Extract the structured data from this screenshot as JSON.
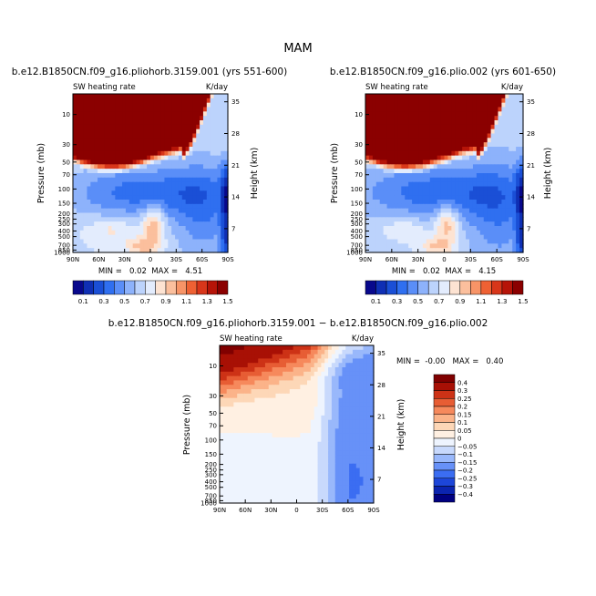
{
  "figure_title": "MAM",
  "chart_data": [
    {
      "type": "heatmap",
      "title": "b.e12.B1850CN.f09_g16.pliohorb.3159.001 (yrs 551-600)",
      "subtitle_left": "SW heating rate",
      "subtitle_right": "K/day",
      "xlabel": "",
      "ylabel": "Pressure (mb)",
      "y2label": "Height (km)",
      "x_tick_labels": [
        "90N",
        "60N",
        "30N",
        "0",
        "30S",
        "60S",
        "90S"
      ],
      "y_tick_labels": [
        "10",
        "30",
        "50",
        "70",
        "100",
        "150",
        "200",
        "250",
        "300",
        "400",
        "500",
        "700",
        "850",
        "1000"
      ],
      "y2_tick_labels": [
        "35",
        "28",
        "21",
        "14",
        "7"
      ],
      "stats_text": "MIN =   0.02  MAX =   4.51",
      "min": 0.02,
      "max": 4.51,
      "colorbar_labels": [
        "0.1",
        "0.3",
        "0.5",
        "0.7",
        "0.9",
        "1.1",
        "1.3",
        "1.5"
      ]
    },
    {
      "type": "heatmap",
      "title": "b.e12.B1850CN.f09_g16.plio.002 (yrs 601-650)",
      "subtitle_left": "SW heating rate",
      "subtitle_right": "K/day",
      "xlabel": "",
      "ylabel": "Pressure (mb)",
      "y2label": "Height (km)",
      "x_tick_labels": [
        "90N",
        "60N",
        "30N",
        "0",
        "30S",
        "60S",
        "90S"
      ],
      "y_tick_labels": [
        "10",
        "30",
        "50",
        "70",
        "100",
        "150",
        "200",
        "250",
        "300",
        "400",
        "500",
        "700",
        "850",
        "1000"
      ],
      "y2_tick_labels": [
        "35",
        "28",
        "21",
        "14",
        "7"
      ],
      "stats_text": "MIN =   0.02  MAX =   4.15",
      "min": 0.02,
      "max": 4.15,
      "colorbar_labels": [
        "0.1",
        "0.3",
        "0.5",
        "0.7",
        "0.9",
        "1.1",
        "1.3",
        "1.5"
      ]
    },
    {
      "type": "heatmap",
      "title": "b.e12.B1850CN.f09_g16.pliohorb.3159.001 − b.e12.B1850CN.f09_g16.plio.002",
      "subtitle_left": "SW heating rate",
      "subtitle_right": "K/day",
      "xlabel": "",
      "ylabel": "Pressure (mb)",
      "y2label": "Height (km)",
      "x_tick_labels": [
        "90N",
        "60N",
        "30N",
        "0",
        "30S",
        "60S",
        "90S"
      ],
      "y_tick_labels": [
        "10",
        "30",
        "50",
        "70",
        "100",
        "150",
        "200",
        "250",
        "300",
        "400",
        "500",
        "700",
        "850",
        "1000"
      ],
      "y2_tick_labels": [
        "35",
        "28",
        "21",
        "14",
        "7"
      ],
      "stats_text": "MIN =  -0.00   MAX =   0.40",
      "min": -0.0,
      "max": 0.4,
      "colorbar_labels": [
        "0.4",
        "0.3",
        "0.25",
        "0.2",
        "0.15",
        "0.1",
        "0.05",
        "0",
        "−0.05",
        "−0.1",
        "−0.15",
        "−0.2",
        "−0.25",
        "−0.3",
        "−0.4"
      ]
    }
  ],
  "colors": {
    "abs_palette": [
      "#08088c",
      "#0f2fb4",
      "#1a4fd6",
      "#2f6ff0",
      "#5a8ef8",
      "#8db2fb",
      "#bcd3fc",
      "#e3ecfd",
      "#fde3d2",
      "#fbbf9d",
      "#f79467",
      "#ee6133",
      "#d8361a",
      "#b61408",
      "#8b0000"
    ],
    "diff_palette": [
      "#000080",
      "#0b24b0",
      "#1d46d9",
      "#3b6df2",
      "#6791f8",
      "#99b8fb",
      "#c8d9fc",
      "#eef4fe",
      "#fff0e2",
      "#fdd7b7",
      "#fbb389",
      "#f6895c",
      "#e75d34",
      "#cd3216",
      "#a81005",
      "#800000"
    ]
  }
}
